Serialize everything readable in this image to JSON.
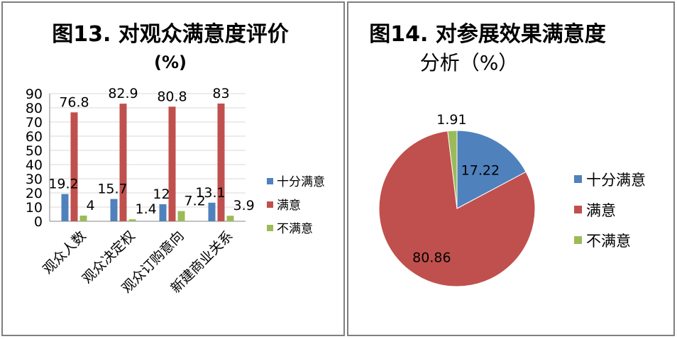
{
  "charts": [
    {
      "title_line1": "图13. 对观众满意度评价",
      "title_line2": "(%)"
    },
    {
      "title_line1": "图14. 对参展效果满意度",
      "title_line2": "分析（%）"
    }
  ],
  "chart_data": [
    {
      "type": "bar",
      "title": "图13. 对观众满意度评价 (%)",
      "categories": [
        "观众人数",
        "观众决定权",
        "观众订购意向",
        "新建商业关系"
      ],
      "series": [
        {
          "name": "十分满意",
          "values": [
            19.2,
            15.7,
            12,
            13.1
          ],
          "color": "#4f81bd"
        },
        {
          "name": "满意",
          "values": [
            76.8,
            82.9,
            80.8,
            83
          ],
          "color": "#c0504d"
        },
        {
          "name": "不满意",
          "values": [
            4,
            1.4,
            7.2,
            3.9
          ],
          "color": "#9bbb59"
        }
      ],
      "ylim": [
        0,
        90
      ],
      "yticks": [
        0,
        10,
        20,
        30,
        40,
        50,
        60,
        70,
        80,
        90
      ],
      "legend": "right",
      "grid": false
    },
    {
      "type": "pie",
      "title": "图14. 对参展效果满意度分析（%）",
      "labels": [
        "十分满意",
        "满意",
        "不满意"
      ],
      "values": [
        17.22,
        80.86,
        1.91
      ],
      "colors": [
        "#4f81bd",
        "#c0504d",
        "#9bbb59"
      ],
      "legend": "right"
    }
  ]
}
